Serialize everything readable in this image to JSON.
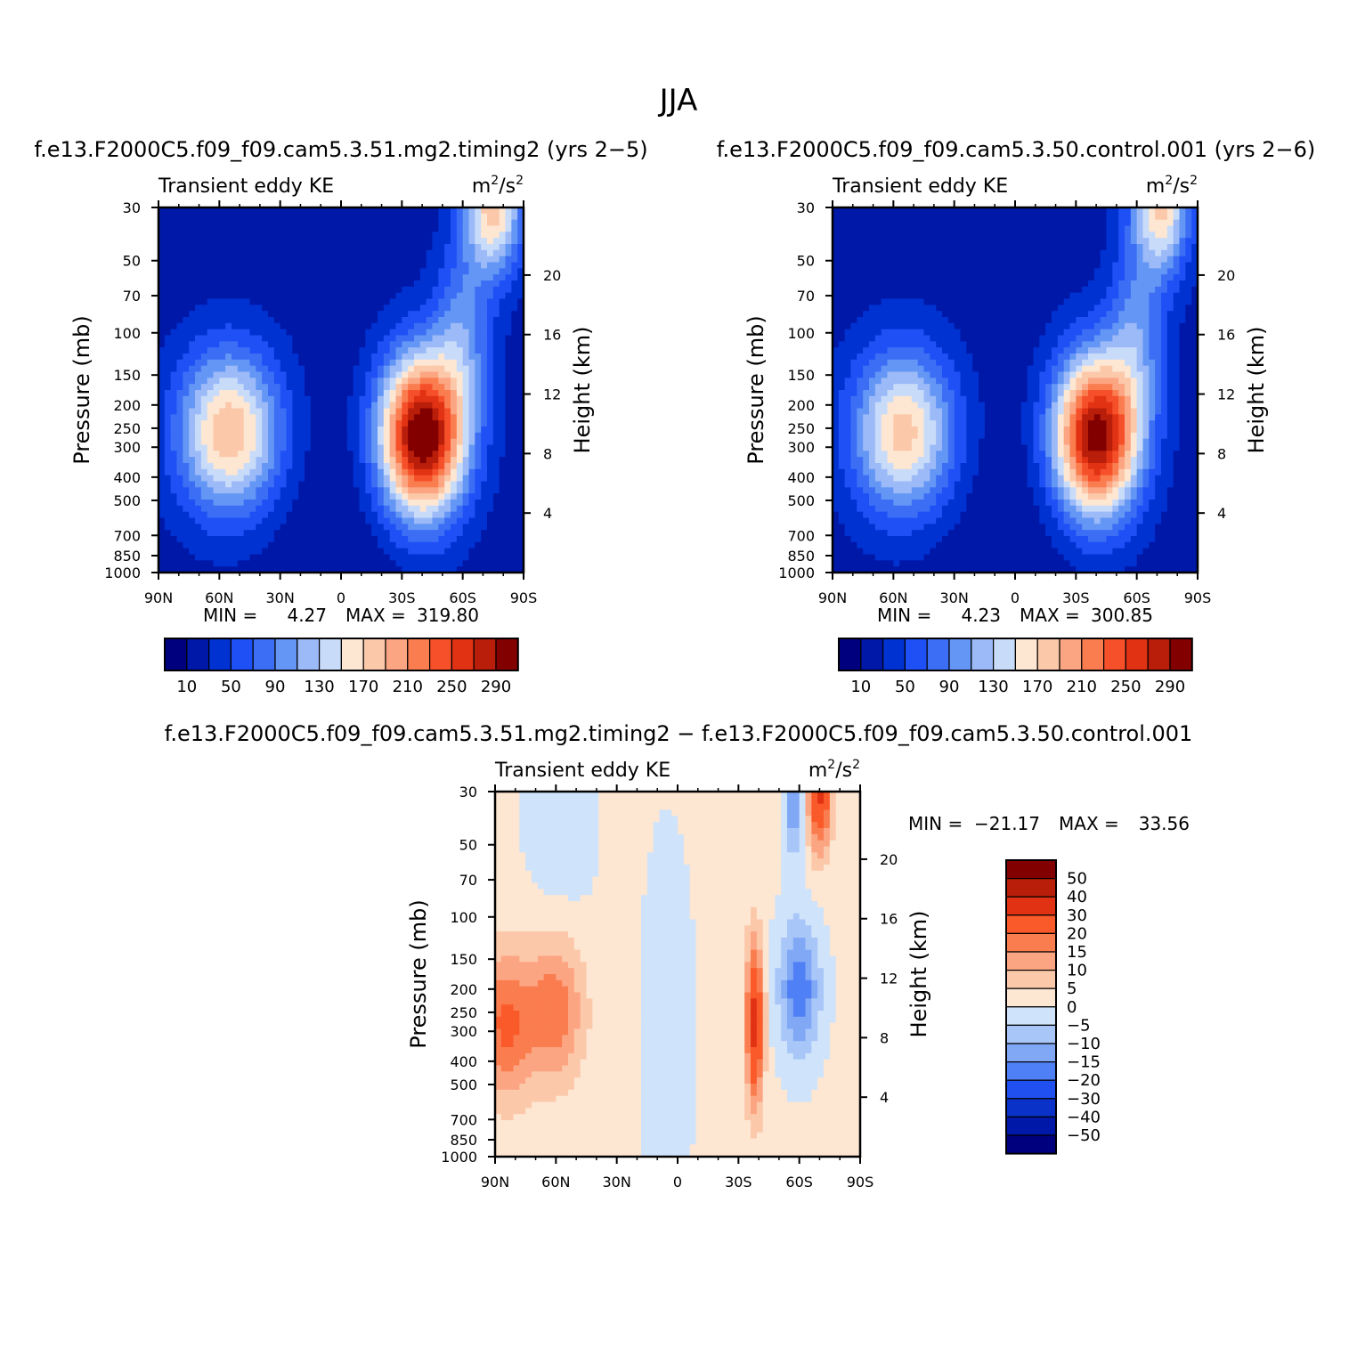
{
  "figure_title": "JJA",
  "colors": {
    "top_scale": [
      "#00007f",
      "#0018a8",
      "#0032d2",
      "#1e50f5",
      "#3c6ef5",
      "#6496f5",
      "#9bbaf7",
      "#c8dcfa",
      "#fde6d2",
      "#fcc8aa",
      "#fca582",
      "#fa7d50",
      "#f5502a",
      "#e13214",
      "#b91e0a",
      "#820000"
    ],
    "diff_scale": [
      "#820000",
      "#b91e0a",
      "#e13214",
      "#fa5a2a",
      "#fa7d50",
      "#fca582",
      "#fcc8aa",
      "#fde6d2",
      "#cfe3fa",
      "#a8c6f8",
      "#80a8f5",
      "#5080f5",
      "#2050f0",
      "#0a32c8",
      "#0018a8",
      "#00007f"
    ]
  },
  "panels": [
    {
      "id": "timing2",
      "case_title": "f.e13.F2000C5.f09_f09.cam5.3.51.mg2.timing2 (yrs 2−5)",
      "left_label": "Transient eddy KE",
      "units_base": "m",
      "units_exp1": "2",
      "units_mid": "/s",
      "units_exp2": "2",
      "min_label": "MIN =",
      "min_value": "4.27",
      "max_label": "MAX =",
      "max_value": "319.80"
    },
    {
      "id": "control",
      "case_title": "f.e13.F2000C5.f09_f09.cam5.3.50.control.001 (yrs 2−6)",
      "left_label": "Transient eddy KE",
      "units_base": "m",
      "units_exp1": "2",
      "units_mid": "/s",
      "units_exp2": "2",
      "min_label": "MIN =",
      "min_value": "4.23",
      "max_label": "MAX =",
      "max_value": "300.85"
    },
    {
      "id": "difference",
      "case_title": "f.e13.F2000C5.f09_f09.cam5.3.51.mg2.timing2 − f.e13.F2000C5.f09_f09.cam5.3.50.control.001",
      "left_label": "Transient eddy KE",
      "units_base": "m",
      "units_exp1": "2",
      "units_mid": "/s",
      "units_exp2": "2",
      "min_label": "MIN =",
      "min_value": "−21.17",
      "max_label": "MAX =",
      "max_value": "33.56"
    }
  ],
  "chart_data": {
    "type": "heatmap",
    "description_of_fields": "zonal-mean latitude-pressure cross sections",
    "x_axis": {
      "label": "",
      "ticks": [
        "90N",
        "60N",
        "30N",
        "0",
        "30S",
        "60S",
        "90S"
      ],
      "range": [
        90,
        -90
      ]
    },
    "y_axis_left": {
      "label": "Pressure (mb)",
      "ticks": [
        "30",
        "50",
        "70",
        "100",
        "150",
        "200",
        "250",
        "300",
        "400",
        "500",
        "700",
        "850",
        "1000"
      ],
      "tick_values": [
        30,
        50,
        70,
        100,
        150,
        200,
        250,
        300,
        400,
        500,
        700,
        850,
        1000
      ],
      "range": [
        1000,
        30
      ],
      "scale": "log"
    },
    "y_axis_right": {
      "label": "Height (km)",
      "ticks": [
        "4",
        "8",
        "12",
        "16",
        "20"
      ]
    },
    "top_colorbar": {
      "labels": [
        "10",
        "50",
        "90",
        "130",
        "170",
        "210",
        "250",
        "290"
      ],
      "levels": [
        10,
        30,
        50,
        70,
        90,
        110,
        130,
        150,
        170,
        190,
        210,
        230,
        250,
        270,
        290
      ]
    },
    "diff_colorbar": {
      "labels": [
        "50",
        "40",
        "30",
        "20",
        "15",
        "10",
        "5",
        "0",
        "−5",
        "−10",
        "−15",
        "−20",
        "−30",
        "−40",
        "−50"
      ],
      "levels": [
        50,
        40,
        30,
        20,
        15,
        10,
        5,
        0,
        -5,
        -10,
        -15,
        -20,
        -30,
        -40,
        -50
      ]
    },
    "fields": {
      "timing2": {
        "bg": 20,
        "features": [
          {
            "lat": -40,
            "p": 270,
            "amp": 300,
            "slat": 15,
            "slp": 0.55
          },
          {
            "lat": -75,
            "p": 30,
            "amp": 160,
            "slat": 10,
            "slp": 0.45
          },
          {
            "lat": -60,
            "p": 100,
            "amp": 70,
            "slat": 10,
            "slp": 0.6
          },
          {
            "lat": 55,
            "p": 260,
            "amp": 170,
            "slat": 18,
            "slp": 0.55
          },
          {
            "lat": 0,
            "p": 600,
            "amp": -10,
            "slat": 30,
            "slp": 1.0
          }
        ]
      },
      "control": {
        "bg": 20,
        "features": [
          {
            "lat": -40,
            "p": 270,
            "amp": 285,
            "slat": 15,
            "slp": 0.55
          },
          {
            "lat": -72,
            "p": 30,
            "amp": 150,
            "slat": 10,
            "slp": 0.45
          },
          {
            "lat": -60,
            "p": 100,
            "amp": 70,
            "slat": 10,
            "slp": 0.6
          },
          {
            "lat": 55,
            "p": 260,
            "amp": 160,
            "slat": 18,
            "slp": 0.55
          },
          {
            "lat": 0,
            "p": 600,
            "amp": -10,
            "slat": 30,
            "slp": 1.0
          }
        ]
      },
      "difference": {
        "bg": 1,
        "features": [
          {
            "lat": -38,
            "p": 280,
            "amp": 32,
            "slat": 3,
            "slp": 0.55
          },
          {
            "lat": -70,
            "p": 30,
            "amp": 30,
            "slat": 4,
            "slp": 0.4
          },
          {
            "lat": -57,
            "p": 30,
            "amp": -18,
            "slat": 3,
            "slp": 0.4
          },
          {
            "lat": -60,
            "p": 200,
            "amp": -20,
            "slat": 7,
            "slp": 0.45
          },
          {
            "lat": 85,
            "p": 280,
            "amp": 20,
            "slat": 10,
            "slp": 0.5
          },
          {
            "lat": 60,
            "p": 240,
            "amp": 18,
            "slat": 10,
            "slp": 0.5
          },
          {
            "lat": 5,
            "p": 300,
            "amp": -5,
            "slat": 8,
            "slp": 1.2
          },
          {
            "lat": 58,
            "p": 30,
            "amp": -4,
            "slat": 12,
            "slp": 1.2
          }
        ]
      }
    }
  }
}
